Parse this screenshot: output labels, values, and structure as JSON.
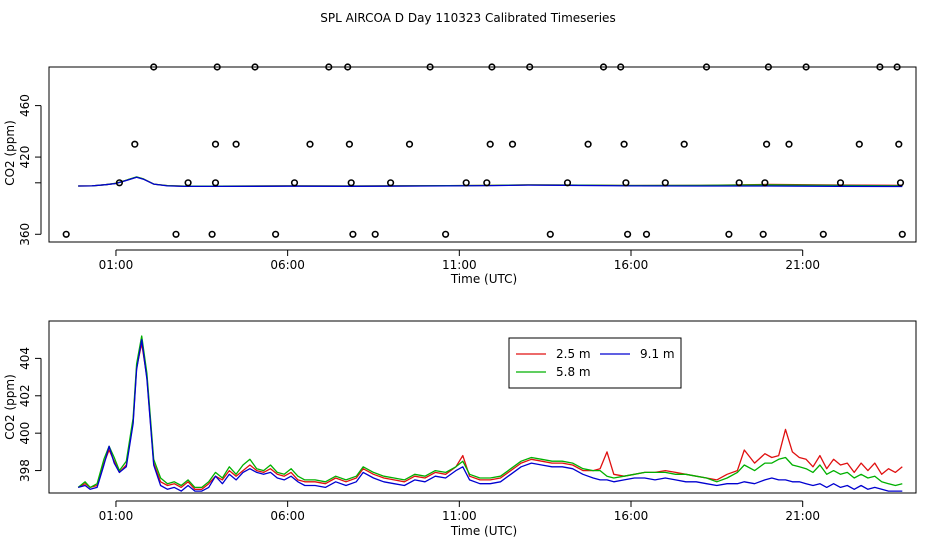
{
  "figure": {
    "title": "SPL AIRCOA D  Day 110323  Calibrated Timeseries",
    "colors": {
      "s2_5": "#e01010",
      "s5_8": "#00b000",
      "s9_1": "#0000d0",
      "axis": "#000000"
    }
  },
  "chart_data": [
    {
      "type": "scatter",
      "xlabel": "Time (UTC)",
      "ylabel": "CO2 (ppm)",
      "xlim": [
        -0.95,
        24.3
      ],
      "ylim": [
        354,
        490
      ],
      "xticks": [
        {
          "v": 1,
          "label": "01:00"
        },
        {
          "v": 6,
          "label": "06:00"
        },
        {
          "v": 11,
          "label": "11:00"
        },
        {
          "v": 16,
          "label": "16:00"
        },
        {
          "v": 21,
          "label": "21:00"
        }
      ],
      "yticks": [
        {
          "v": 360,
          "label": "360"
        },
        {
          "v": 420,
          "label": "420"
        },
        {
          "v": 460,
          "label": "460"
        }
      ],
      "extra_ytick_no_label": [
        400
      ],
      "calibration_points": [
        [
          -0.45,
          360
        ],
        [
          1.1,
          400
        ],
        [
          1.55,
          430
        ],
        [
          2.1,
          490
        ],
        [
          2.75,
          360
        ],
        [
          3.1,
          400
        ],
        [
          3.8,
          360
        ],
        [
          3.9,
          400
        ],
        [
          3.9,
          430
        ],
        [
          3.95,
          490
        ],
        [
          4.5,
          430
        ],
        [
          5.05,
          490
        ],
        [
          5.65,
          360
        ],
        [
          6.2,
          400
        ],
        [
          6.65,
          430
        ],
        [
          7.2,
          490
        ],
        [
          7.75,
          490
        ],
        [
          7.8,
          430
        ],
        [
          7.85,
          400
        ],
        [
          7.9,
          360
        ],
        [
          8.55,
          360
        ],
        [
          9.0,
          400
        ],
        [
          9.55,
          430
        ],
        [
          10.15,
          490
        ],
        [
          10.6,
          360
        ],
        [
          11.2,
          400
        ],
        [
          11.8,
          400
        ],
        [
          11.9,
          430
        ],
        [
          11.95,
          490
        ],
        [
          12.55,
          430
        ],
        [
          13.05,
          490
        ],
        [
          13.65,
          360
        ],
        [
          14.15,
          400
        ],
        [
          14.75,
          430
        ],
        [
          15.2,
          490
        ],
        [
          15.7,
          490
        ],
        [
          15.8,
          430
        ],
        [
          15.85,
          400
        ],
        [
          15.9,
          360
        ],
        [
          16.45,
          360
        ],
        [
          17.0,
          400
        ],
        [
          17.55,
          430
        ],
        [
          18.2,
          490
        ],
        [
          18.85,
          360
        ],
        [
          19.15,
          400
        ],
        [
          19.85,
          360
        ],
        [
          19.9,
          400
        ],
        [
          19.95,
          430
        ],
        [
          20.0,
          490
        ],
        [
          20.6,
          430
        ],
        [
          21.1,
          490
        ],
        [
          21.6,
          360
        ],
        [
          22.1,
          400
        ],
        [
          22.65,
          430
        ],
        [
          23.25,
          490
        ],
        [
          23.75,
          490
        ],
        [
          23.8,
          430
        ],
        [
          23.85,
          400
        ],
        [
          23.9,
          360
        ]
      ],
      "series_x": [
        -0.1,
        0.3,
        0.7,
        1.0,
        1.3,
        1.6,
        1.8,
        2.1,
        2.5,
        3.0,
        4.0,
        6.0,
        8.0,
        10.0,
        12.0,
        13.0,
        14.0,
        16.0,
        18.0,
        20.0,
        22.0,
        23.9
      ],
      "series": [
        {
          "name": "2.5 m",
          "values": [
            397.5,
            397.6,
            398.5,
            399.6,
            402,
            404.4,
            403,
            399,
            397.8,
            397.4,
            397.4,
            397.6,
            397.5,
            397.7,
            398.0,
            398.4,
            398.3,
            397.9,
            398.0,
            398.8,
            398.3,
            398.0
          ]
        },
        {
          "name": "5.8 m",
          "values": [
            397.5,
            397.6,
            398.5,
            399.6,
            402,
            404.6,
            403,
            399,
            397.8,
            397.4,
            397.4,
            397.6,
            397.5,
            397.7,
            398.0,
            398.4,
            398.3,
            397.9,
            398.0,
            398.4,
            398.0,
            397.7
          ]
        },
        {
          "name": "9.1 m",
          "values": [
            397.5,
            397.6,
            398.5,
            399.5,
            401.8,
            404.3,
            402.8,
            399,
            397.6,
            397.2,
            397.2,
            397.4,
            397.3,
            397.5,
            397.8,
            398.2,
            398.1,
            397.6,
            397.5,
            397.5,
            397.3,
            397.1
          ]
        }
      ]
    },
    {
      "type": "line",
      "xlabel": "Time (UTC)",
      "ylabel": "CO2 (ppm)",
      "xlim": [
        -0.95,
        24.3
      ],
      "ylim": [
        396.8,
        406.0
      ],
      "xticks": [
        {
          "v": 1,
          "label": "01:00"
        },
        {
          "v": 6,
          "label": "06:00"
        },
        {
          "v": 11,
          "label": "11:00"
        },
        {
          "v": 16,
          "label": "16:00"
        },
        {
          "v": 21,
          "label": "21:00"
        }
      ],
      "yticks": [
        {
          "v": 398,
          "label": "398"
        },
        {
          "v": 400,
          "label": "400"
        },
        {
          "v": 402,
          "label": "402"
        },
        {
          "v": 404,
          "label": "404"
        }
      ],
      "legend": {
        "position": "top-center",
        "columns": 2
      },
      "x": [
        -0.1,
        0.1,
        0.25,
        0.45,
        0.65,
        0.8,
        0.95,
        1.1,
        1.3,
        1.5,
        1.6,
        1.75,
        1.9,
        2.1,
        2.3,
        2.5,
        2.7,
        2.9,
        3.1,
        3.3,
        3.5,
        3.7,
        3.9,
        4.1,
        4.3,
        4.5,
        4.7,
        4.9,
        5.1,
        5.3,
        5.5,
        5.7,
        5.9,
        6.1,
        6.3,
        6.5,
        6.8,
        7.1,
        7.4,
        7.7,
        8.0,
        8.2,
        8.5,
        8.8,
        9.1,
        9.4,
        9.7,
        10.0,
        10.3,
        10.6,
        10.9,
        11.1,
        11.3,
        11.6,
        11.9,
        12.2,
        12.5,
        12.8,
        13.1,
        13.4,
        13.7,
        14.0,
        14.3,
        14.6,
        14.9,
        15.1,
        15.3,
        15.5,
        15.8,
        16.1,
        16.4,
        16.7,
        17.0,
        17.3,
        17.6,
        17.9,
        18.2,
        18.5,
        18.8,
        19.1,
        19.3,
        19.6,
        19.9,
        20.1,
        20.3,
        20.5,
        20.7,
        20.9,
        21.1,
        21.3,
        21.5,
        21.7,
        21.9,
        22.1,
        22.3,
        22.5,
        22.7,
        22.9,
        23.1,
        23.3,
        23.5,
        23.7,
        23.9
      ],
      "series": [
        {
          "name": "2.5 m",
          "values": [
            397.1,
            397.3,
            397.1,
            397.2,
            398.4,
            399.1,
            398.5,
            397.9,
            398.3,
            400.6,
            403.5,
            404.8,
            403.0,
            398.4,
            397.4,
            397.2,
            397.3,
            397.1,
            397.4,
            397.0,
            397.0,
            397.3,
            397.7,
            397.5,
            398.0,
            397.7,
            398.0,
            398.3,
            398.0,
            397.9,
            398.1,
            397.8,
            397.7,
            397.9,
            397.5,
            397.4,
            397.4,
            397.3,
            397.6,
            397.4,
            397.6,
            398.1,
            397.8,
            397.6,
            397.5,
            397.4,
            397.7,
            397.6,
            397.9,
            397.8,
            398.2,
            398.8,
            397.7,
            397.5,
            397.5,
            397.6,
            398.0,
            398.4,
            398.6,
            398.5,
            398.4,
            398.4,
            398.3,
            398.0,
            398.0,
            398.1,
            399.0,
            397.8,
            397.7,
            397.8,
            397.9,
            397.9,
            398.0,
            397.9,
            397.8,
            397.7,
            397.6,
            397.5,
            397.8,
            398.0,
            399.1,
            398.4,
            398.9,
            398.7,
            398.8,
            400.2,
            399.0,
            398.7,
            398.6,
            398.2,
            398.8,
            398.1,
            398.6,
            398.3,
            398.4,
            397.9,
            398.4,
            398.0,
            398.4,
            397.8,
            398.1,
            397.9,
            398.2
          ]
        },
        {
          "name": "5.8 m",
          "values": [
            397.1,
            397.4,
            397.1,
            397.3,
            398.6,
            399.3,
            398.7,
            398.0,
            398.5,
            400.8,
            403.7,
            405.2,
            403.2,
            398.6,
            397.6,
            397.3,
            397.4,
            397.2,
            397.5,
            397.1,
            397.1,
            397.4,
            397.9,
            397.6,
            398.2,
            397.8,
            398.3,
            398.6,
            398.1,
            398.0,
            398.3,
            397.9,
            397.8,
            398.1,
            397.7,
            397.5,
            397.5,
            397.4,
            397.7,
            397.5,
            397.7,
            398.2,
            397.9,
            397.7,
            397.6,
            397.5,
            397.8,
            397.7,
            398.0,
            397.9,
            398.2,
            398.5,
            397.8,
            397.6,
            397.6,
            397.7,
            398.1,
            398.5,
            398.7,
            398.6,
            398.5,
            398.5,
            398.4,
            398.1,
            398.0,
            398.0,
            397.7,
            397.6,
            397.7,
            397.8,
            397.9,
            397.9,
            397.9,
            397.8,
            397.8,
            397.7,
            397.6,
            397.4,
            397.6,
            397.9,
            398.3,
            398.0,
            398.4,
            398.4,
            398.6,
            398.7,
            398.3,
            398.2,
            398.1,
            397.9,
            398.3,
            397.8,
            398.0,
            397.8,
            397.9,
            397.6,
            397.8,
            397.6,
            397.7,
            397.4,
            397.3,
            397.2,
            397.3
          ]
        },
        {
          "name": "9.1 m",
          "values": [
            397.1,
            397.2,
            397.0,
            397.1,
            398.3,
            399.3,
            398.4,
            397.9,
            398.2,
            400.5,
            403.4,
            405.0,
            402.9,
            398.3,
            397.2,
            397.0,
            397.1,
            396.9,
            397.2,
            396.9,
            396.9,
            397.1,
            397.7,
            397.3,
            397.8,
            397.5,
            397.9,
            398.1,
            397.9,
            397.8,
            397.9,
            397.6,
            397.5,
            397.7,
            397.4,
            397.2,
            397.2,
            397.1,
            397.4,
            397.2,
            397.4,
            397.9,
            397.6,
            397.4,
            397.3,
            397.2,
            397.5,
            397.4,
            397.7,
            397.6,
            398.0,
            398.2,
            397.5,
            397.3,
            397.3,
            397.4,
            397.8,
            398.2,
            398.4,
            398.3,
            398.2,
            398.2,
            398.1,
            397.8,
            397.6,
            397.5,
            397.5,
            397.4,
            397.5,
            397.6,
            397.6,
            397.5,
            397.6,
            397.5,
            397.4,
            397.4,
            397.3,
            397.2,
            397.3,
            397.3,
            397.4,
            397.3,
            397.5,
            397.6,
            397.5,
            397.5,
            397.4,
            397.4,
            397.3,
            397.2,
            397.3,
            397.1,
            397.3,
            397.1,
            397.2,
            397.0,
            397.2,
            397.0,
            397.1,
            397.0,
            396.9,
            396.9,
            396.9
          ]
        }
      ]
    }
  ]
}
